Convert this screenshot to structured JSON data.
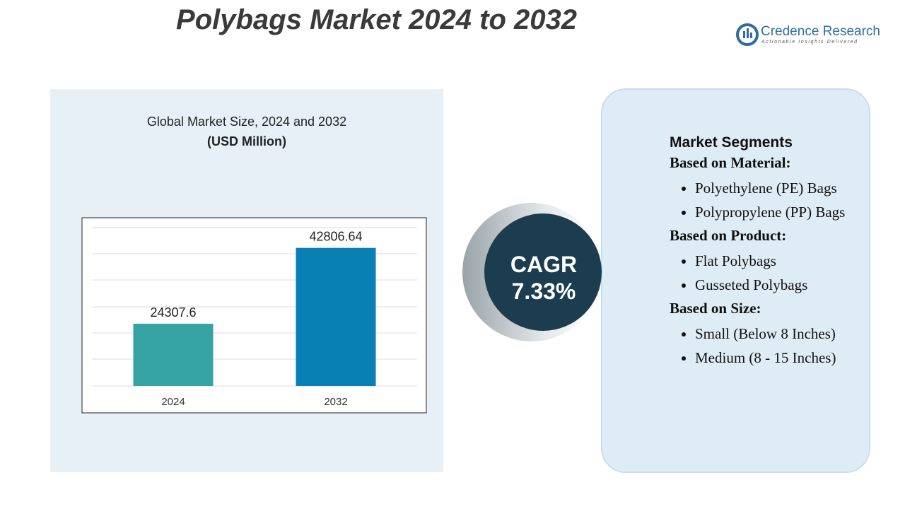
{
  "title": "Polybags Market 2024 to 2032",
  "brand": {
    "name": "Credence Research",
    "tagline": "Actionable Insights Delivered"
  },
  "chart_data": {
    "type": "bar",
    "title": "Global Market Size, 2024 and 2032",
    "subtitle": "(USD Million)",
    "categories": [
      "2024",
      "2032"
    ],
    "values": [
      24307.6,
      42806.64
    ],
    "colors": [
      "#35a3a3",
      "#0880b3"
    ],
    "ylim": [
      9100,
      50000
    ]
  },
  "cagr": {
    "label": "CAGR",
    "value": "7.33%"
  },
  "segments": {
    "title": "Market Segments",
    "groups": [
      {
        "heading": "Based on Material:",
        "items": [
          "Polyethylene (PE) Bags",
          "Polypropylene (PP) Bags"
        ]
      },
      {
        "heading": "Based on Product:",
        "items": [
          "Flat Polybags",
          "Gusseted Polybags"
        ]
      },
      {
        "heading": "Based on Size:",
        "items": [
          "Small (Below 8 Inches)",
          "Medium (8 - 15 Inches)"
        ]
      }
    ]
  }
}
